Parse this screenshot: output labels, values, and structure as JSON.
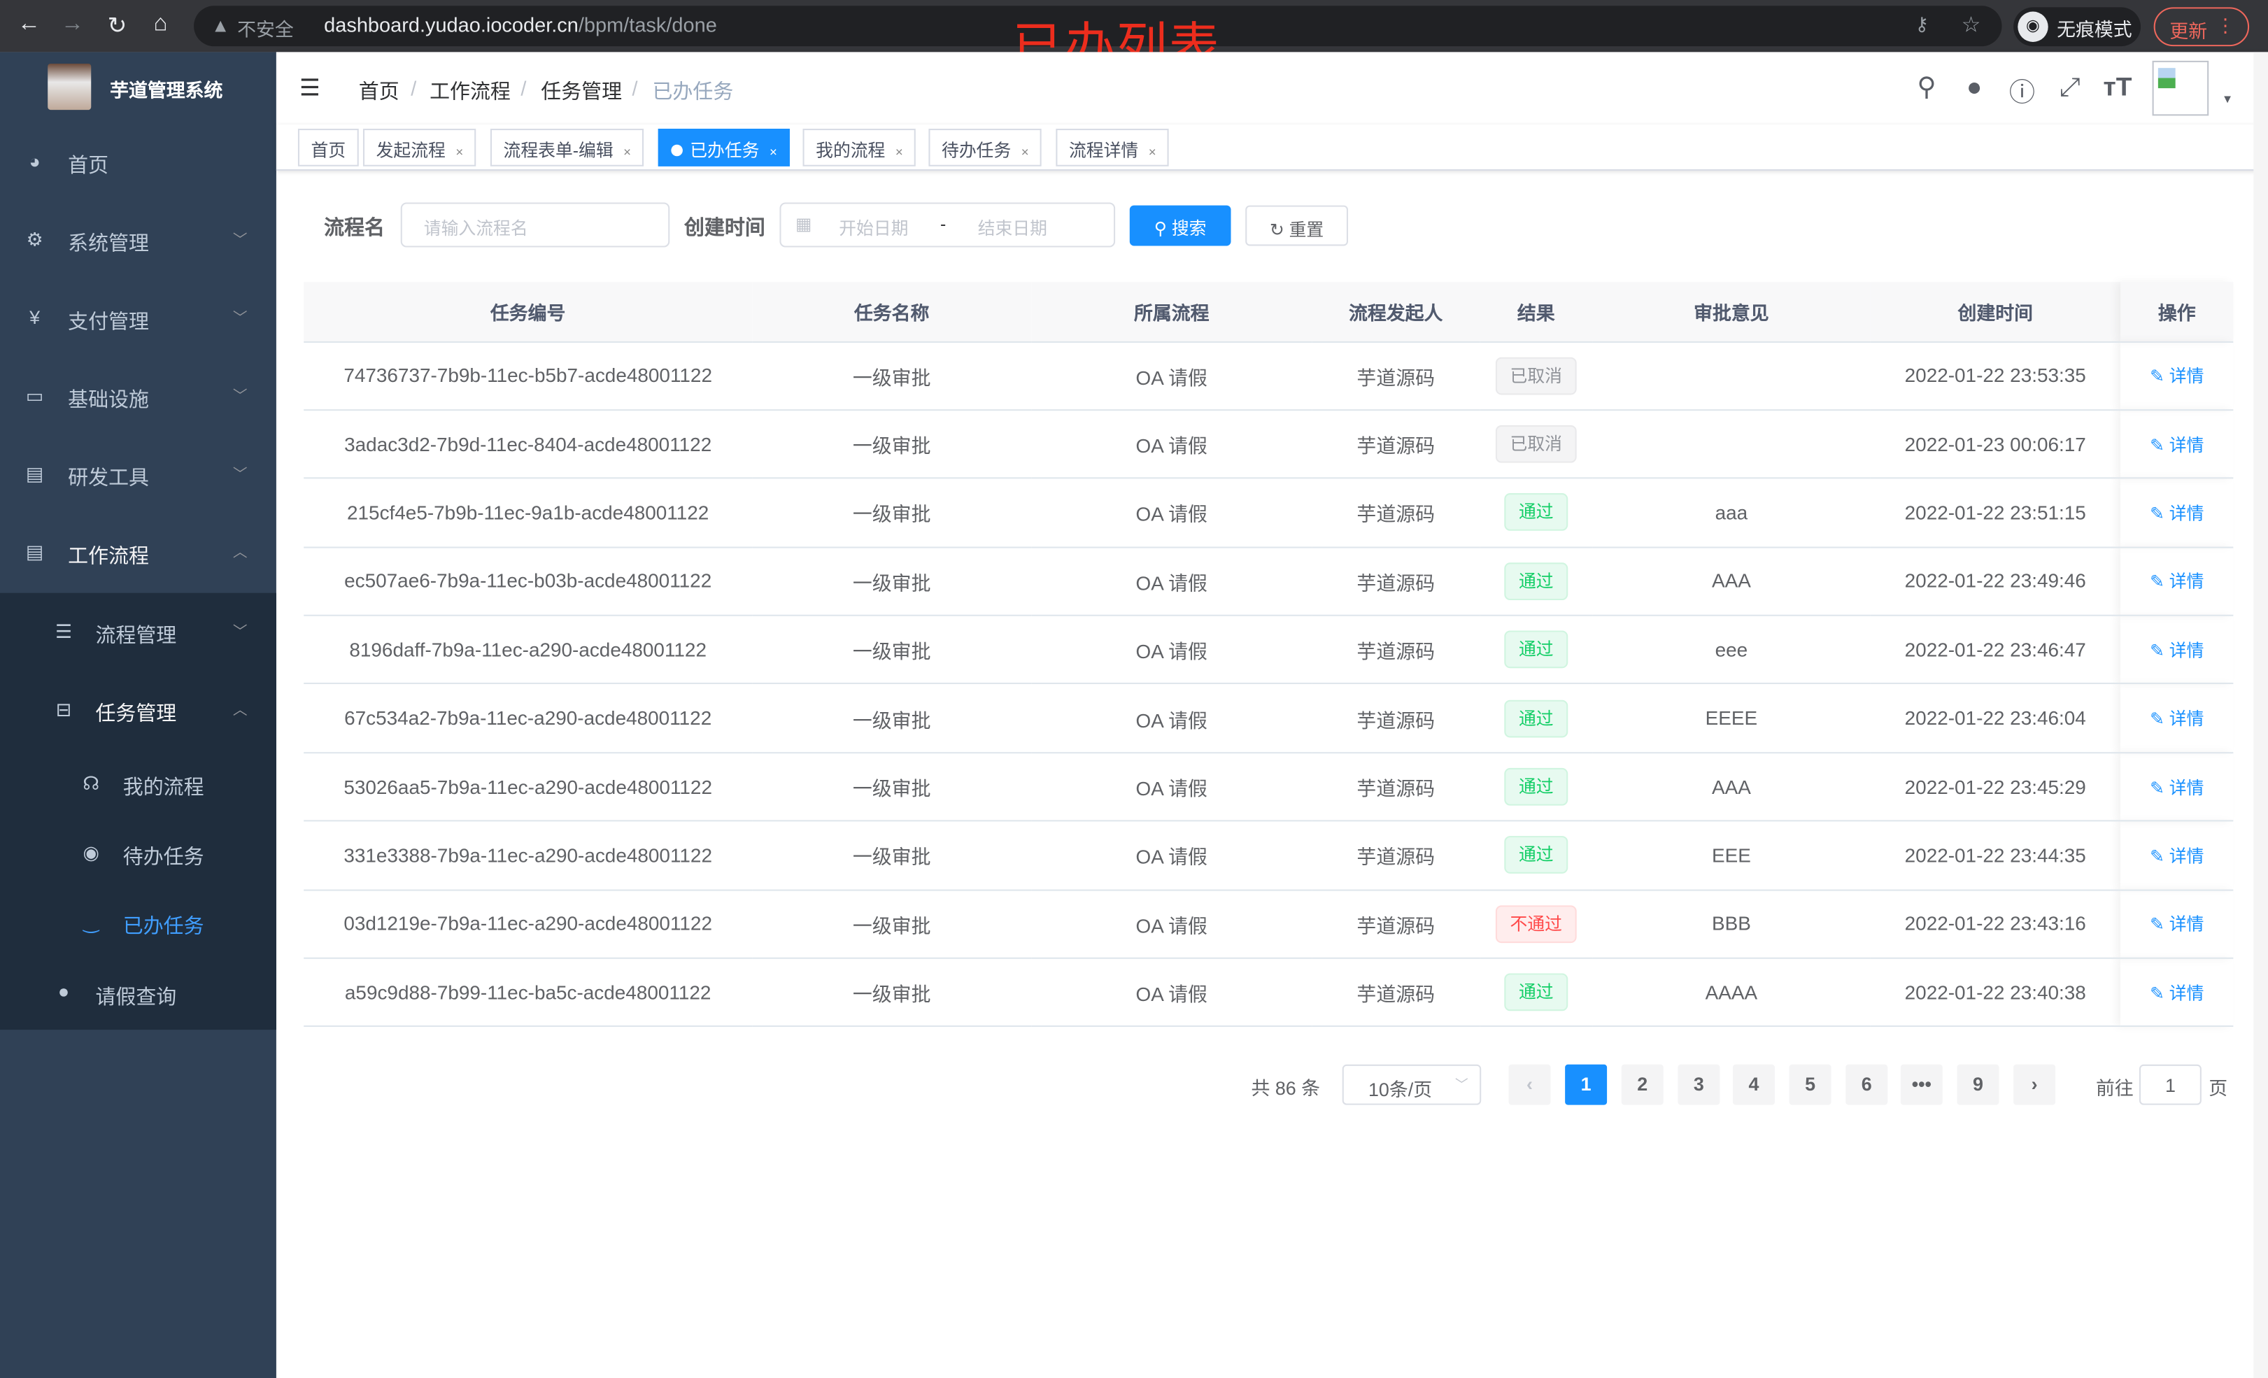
{
  "browser": {
    "insecure_label": "不安全",
    "url_host": "dashboard.yudao.iocoder.cn",
    "url_path": "/bpm/task/done",
    "incognito_label": "无痕模式",
    "update_label": "更新"
  },
  "overlay_title": "已办列表",
  "sidebar": {
    "logo_text": "芋道管理系统",
    "items": [
      {
        "label": "首页",
        "icon": "dashboard-icon"
      },
      {
        "label": "系统管理",
        "icon": "gear-icon"
      },
      {
        "label": "支付管理",
        "icon": "yen-icon"
      },
      {
        "label": "基础设施",
        "icon": "monitor-icon"
      },
      {
        "label": "研发工具",
        "icon": "toolbox-icon"
      },
      {
        "label": "工作流程",
        "icon": "toolbox-icon"
      }
    ],
    "sub_items": [
      {
        "label": "流程管理",
        "icon": "list-icon"
      },
      {
        "label": "任务管理",
        "icon": "tree-icon"
      },
      {
        "label": "我的流程",
        "icon": "headset-icon"
      },
      {
        "label": "待办任务",
        "icon": "eye-icon"
      },
      {
        "label": "已办任务",
        "icon": "eye-closed-icon"
      },
      {
        "label": "请假查询",
        "icon": "user-icon"
      }
    ]
  },
  "breadcrumb": [
    "首页",
    "工作流程",
    "任务管理",
    "已办任务"
  ],
  "tags": [
    "首页",
    "发起流程",
    "流程表单-编辑",
    "已办任务",
    "我的流程",
    "待办任务",
    "流程详情"
  ],
  "active_tag": "已办任务",
  "search": {
    "name_label": "流程名",
    "name_placeholder": "请输入流程名",
    "time_label": "创建时间",
    "start_placeholder": "开始日期",
    "range_sep": "-",
    "end_placeholder": "结束日期",
    "search_button": "搜索",
    "reset_button": "重置"
  },
  "table": {
    "columns": [
      "任务编号",
      "任务名称",
      "所属流程",
      "流程发起人",
      "结果",
      "审批意见",
      "创建时间",
      "操作"
    ],
    "action_label": "详情",
    "rows": [
      {
        "id": "74736737-7b9b-11ec-b5b7-acde48001122",
        "name": "一级审批",
        "process": "OA 请假",
        "starter": "芋道源码",
        "result": "已取消",
        "status": "cancel",
        "comment": "",
        "time": "2022-01-22 23:53:35"
      },
      {
        "id": "3adac3d2-7b9d-11ec-8404-acde48001122",
        "name": "一级审批",
        "process": "OA 请假",
        "starter": "芋道源码",
        "result": "已取消",
        "status": "cancel",
        "comment": "",
        "time": "2022-01-23 00:06:17"
      },
      {
        "id": "215cf4e5-7b9b-11ec-9a1b-acde48001122",
        "name": "一级审批",
        "process": "OA 请假",
        "starter": "芋道源码",
        "result": "通过",
        "status": "pass",
        "comment": "aaa",
        "time": "2022-01-22 23:51:15"
      },
      {
        "id": "ec507ae6-7b9a-11ec-b03b-acde48001122",
        "name": "一级审批",
        "process": "OA 请假",
        "starter": "芋道源码",
        "result": "通过",
        "status": "pass",
        "comment": "AAA",
        "time": "2022-01-22 23:49:46"
      },
      {
        "id": "8196daff-7b9a-11ec-a290-acde48001122",
        "name": "一级审批",
        "process": "OA 请假",
        "starter": "芋道源码",
        "result": "通过",
        "status": "pass",
        "comment": "eee",
        "time": "2022-01-22 23:46:47"
      },
      {
        "id": "67c534a2-7b9a-11ec-a290-acde48001122",
        "name": "一级审批",
        "process": "OA 请假",
        "starter": "芋道源码",
        "result": "通过",
        "status": "pass",
        "comment": "EEEE",
        "time": "2022-01-22 23:46:04"
      },
      {
        "id": "53026aa5-7b9a-11ec-a290-acde48001122",
        "name": "一级审批",
        "process": "OA 请假",
        "starter": "芋道源码",
        "result": "通过",
        "status": "pass",
        "comment": "AAA",
        "time": "2022-01-22 23:45:29"
      },
      {
        "id": "331e3388-7b9a-11ec-a290-acde48001122",
        "name": "一级审批",
        "process": "OA 请假",
        "starter": "芋道源码",
        "result": "通过",
        "status": "pass",
        "comment": "EEE",
        "time": "2022-01-22 23:44:35"
      },
      {
        "id": "03d1219e-7b9a-11ec-a290-acde48001122",
        "name": "一级审批",
        "process": "OA 请假",
        "starter": "芋道源码",
        "result": "不通过",
        "status": "reject",
        "comment": "BBB",
        "time": "2022-01-22 23:43:16"
      },
      {
        "id": "a59c9d88-7b99-11ec-ba5c-acde48001122",
        "name": "一级审批",
        "process": "OA 请假",
        "starter": "芋道源码",
        "result": "通过",
        "status": "pass",
        "comment": "AAAA",
        "time": "2022-01-22 23:40:38"
      }
    ]
  },
  "status_colors": {
    "cancel": {
      "bg": "#f4f4f5",
      "border": "#e9e9eb",
      "text": "#909399"
    },
    "pass": {
      "bg": "#e7faf0",
      "border": "#d0f5e0",
      "text": "#13ce66"
    },
    "reject": {
      "bg": "#ffeded",
      "border": "#ffdbdb",
      "text": "#ff4949"
    }
  },
  "pagination": {
    "total_label": "共 86 条",
    "page_size": "10条/页",
    "pages": [
      "1",
      "2",
      "3",
      "4",
      "5",
      "6",
      "•••",
      "9"
    ],
    "current": "1",
    "goto_label": "前往",
    "goto_value": "1",
    "page_suffix": "页"
  },
  "accent_color": "#1890ff"
}
